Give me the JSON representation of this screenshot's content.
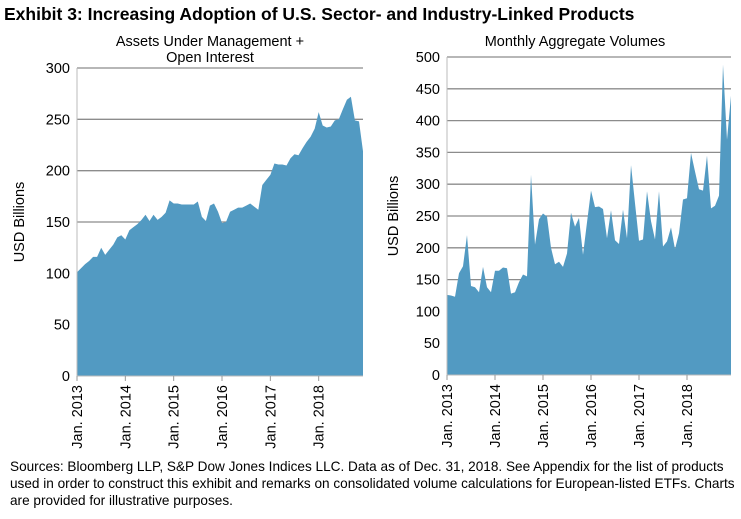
{
  "title": "Exhibit 3: Increasing Adoption of U.S. Sector- and Industry-Linked Products",
  "footer": "Sources: Bloomberg LLP, S&P Dow Jones Indices LLC.  Data as of Dec. 31, 2018.  See Appendix for the list of products used in order to construct this exhibit and remarks on consolidated volume calculations for European-listed ETFs.  Charts are provided for illustrative purposes.",
  "colors": {
    "area": "#529ac2",
    "grid": "#8c8c8c"
  },
  "chart_data": [
    {
      "type": "area",
      "title_lines": [
        "Assets Under Management +",
        "Open Interest"
      ],
      "ylabel": "USD Billions",
      "ylim": [
        0,
        300
      ],
      "yticks": [
        0,
        50,
        100,
        150,
        200,
        250,
        300
      ],
      "xtick_labels": [
        "Jan. 2013",
        "Jan. 2014",
        "Jan. 2015",
        "Jan. 2016",
        "Jan. 2017",
        "Jan. 2018"
      ],
      "x_start": "2013-01",
      "x_end": "2018-12",
      "grid": true,
      "values": [
        101,
        105,
        109,
        112,
        116,
        116,
        125,
        118,
        123,
        128,
        135,
        137,
        133,
        142,
        145,
        148,
        152,
        157,
        151,
        157,
        152,
        155,
        159,
        171,
        168,
        168,
        167,
        167,
        167,
        167,
        170,
        155,
        151,
        166,
        168,
        160,
        149,
        150,
        160,
        162,
        164,
        164,
        166,
        168,
        165,
        162,
        186,
        191,
        196,
        207,
        206,
        206,
        205,
        212,
        216,
        215,
        222,
        228,
        233,
        241,
        257,
        244,
        242,
        243,
        249,
        250,
        260,
        269,
        272,
        249,
        248,
        219
      ]
    },
    {
      "type": "area",
      "title_lines": [
        "Monthly Aggregate Volumes"
      ],
      "ylabel": "USD Billions",
      "ylim": [
        0,
        500
      ],
      "yticks": [
        0,
        50,
        100,
        150,
        200,
        250,
        300,
        350,
        400,
        450,
        500
      ],
      "xtick_labels": [
        "Jan. 2013",
        "Jan. 2014",
        "Jan. 2015",
        "Jan. 2016",
        "Jan. 2017",
        "Jan. 2018"
      ],
      "x_start": "2013-01",
      "x_end": "2018-12",
      "grid": true,
      "values": [
        126,
        125,
        123,
        160,
        171,
        220,
        140,
        138,
        130,
        170,
        138,
        130,
        164,
        164,
        169,
        168,
        128,
        130,
        146,
        158,
        155,
        315,
        205,
        245,
        254,
        249,
        200,
        174,
        178,
        170,
        191,
        255,
        233,
        247,
        189,
        240,
        290,
        264,
        265,
        261,
        215,
        259,
        212,
        206,
        260,
        215,
        330,
        270,
        211,
        213,
        289,
        242,
        213,
        289,
        202,
        210,
        232,
        198,
        223,
        276,
        278,
        349,
        320,
        292,
        290,
        345,
        262,
        266,
        282,
        488,
        370,
        439
      ]
    }
  ]
}
